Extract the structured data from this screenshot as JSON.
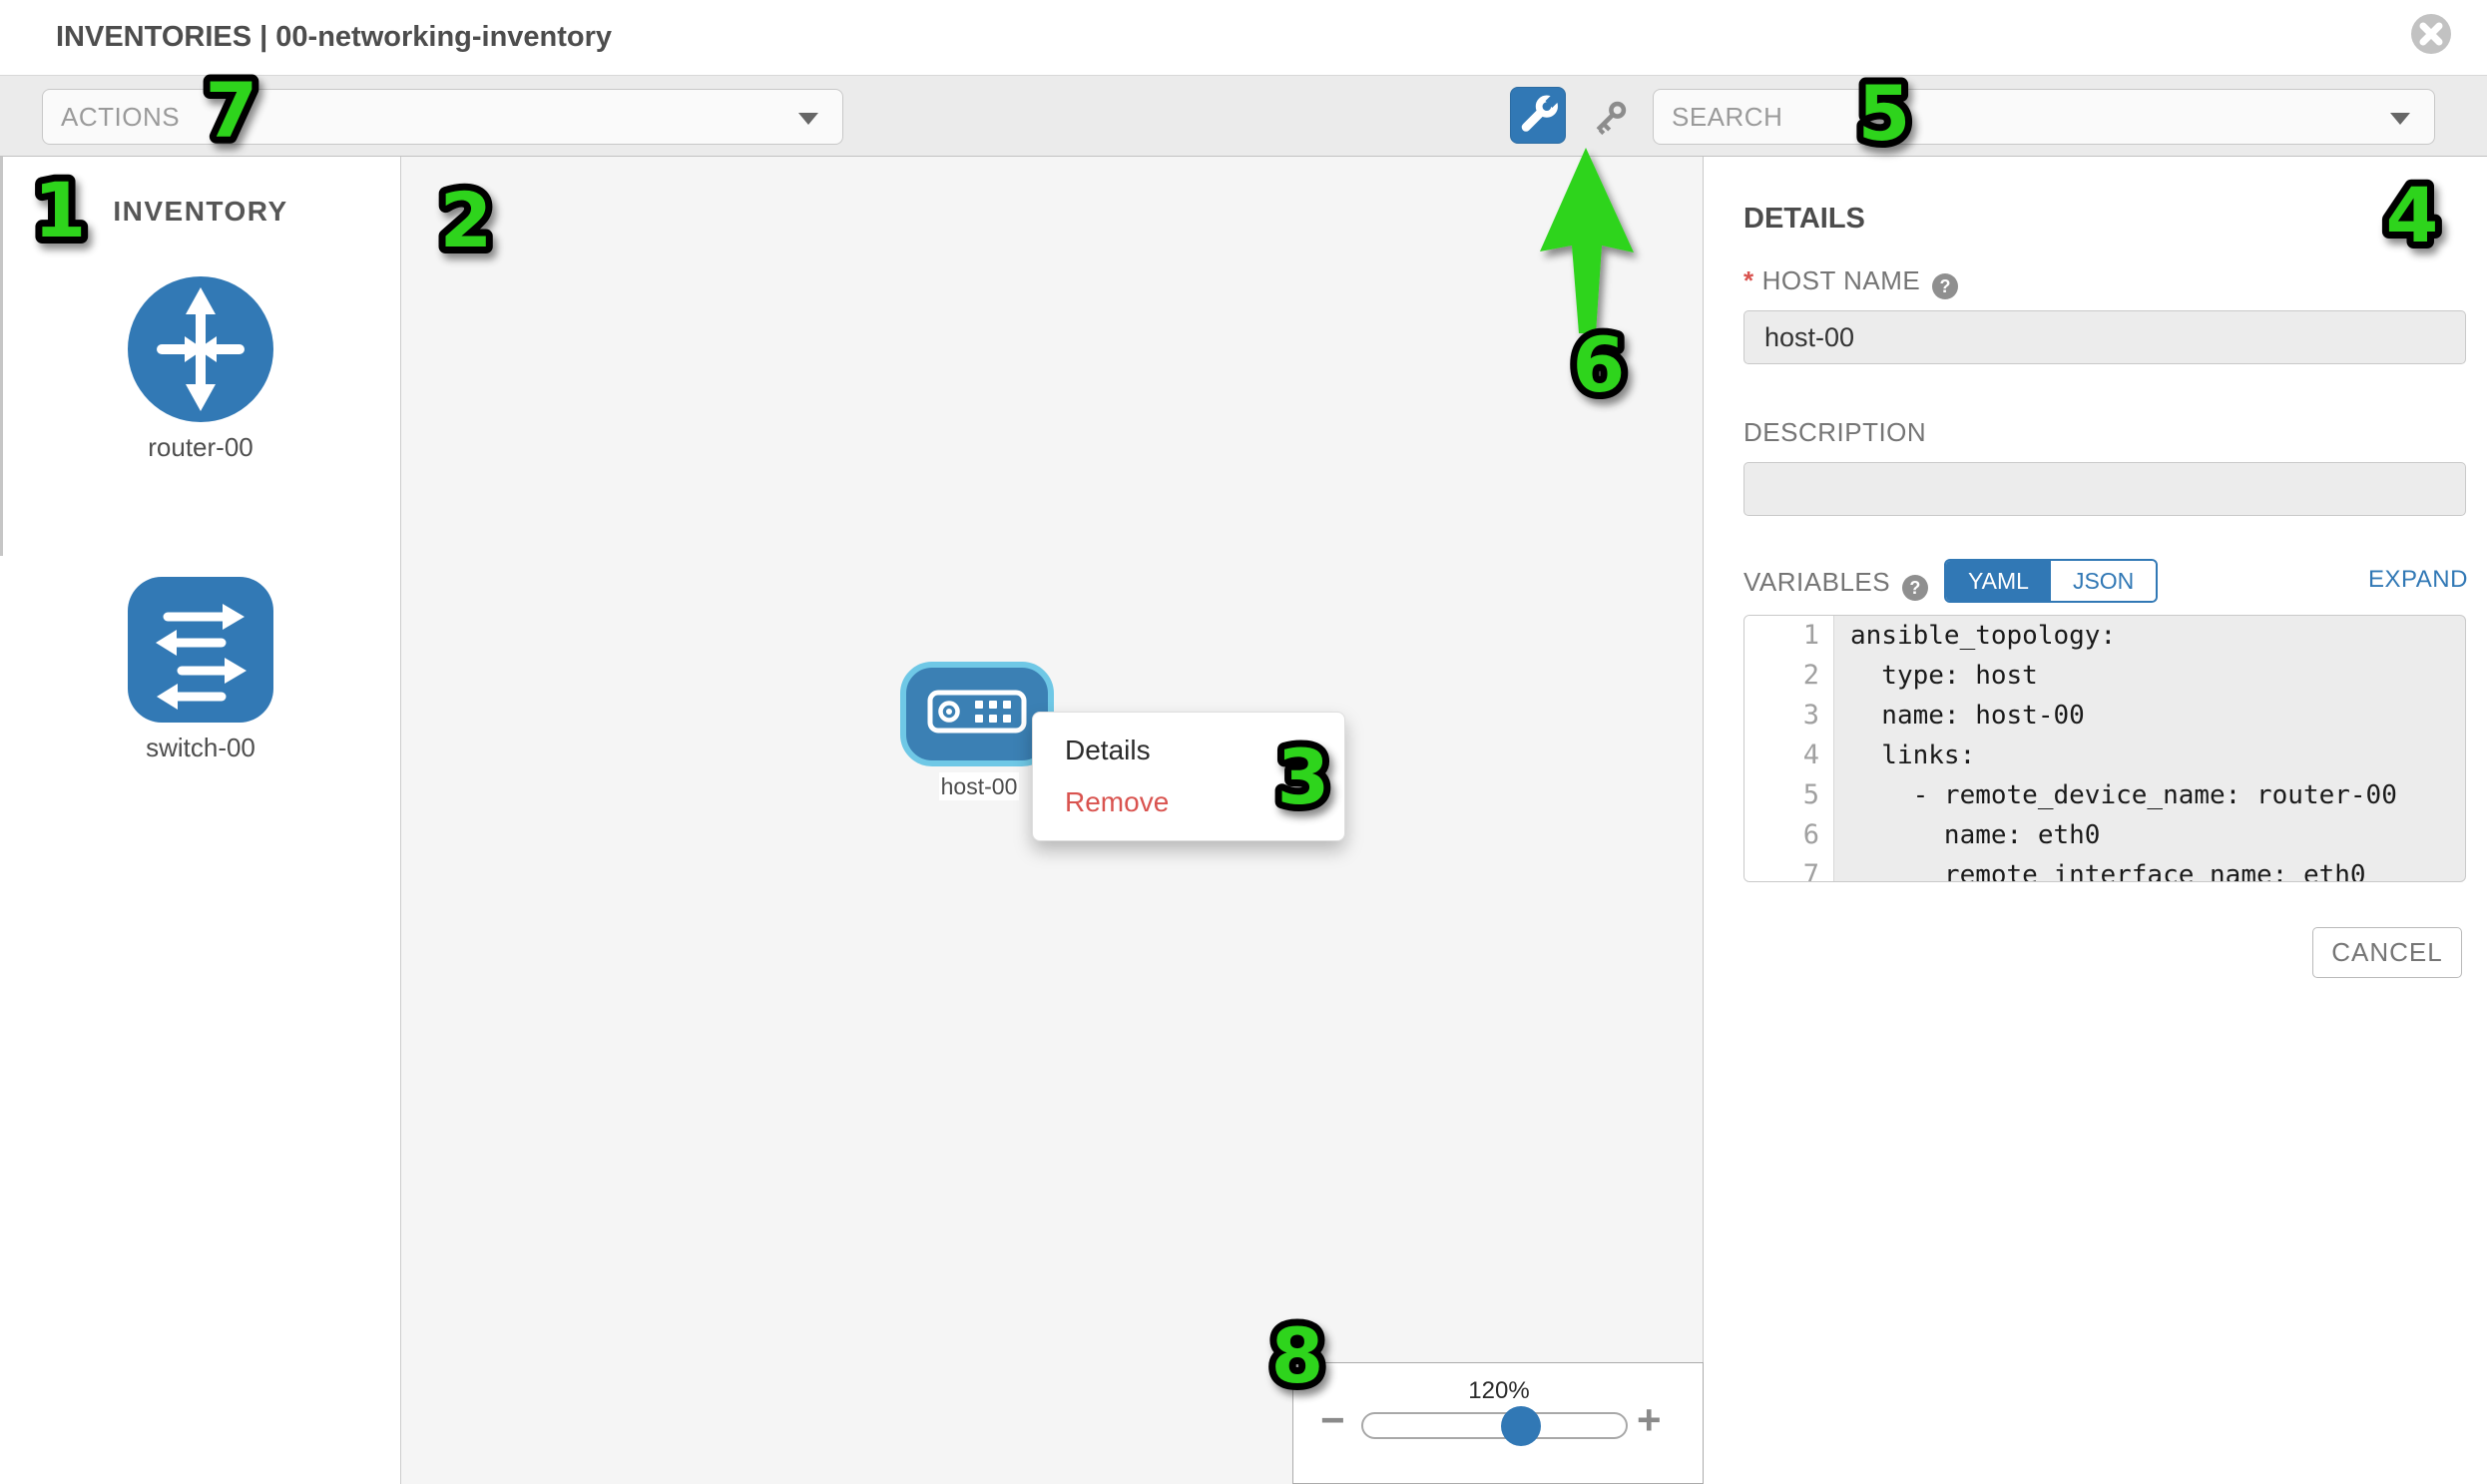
{
  "header": {
    "title": "INVENTORIES | 00-networking-inventory"
  },
  "toolbar": {
    "actions_label": "ACTIONS",
    "search_placeholder": "SEARCH"
  },
  "sidebar": {
    "heading": "INVENTORY",
    "items": [
      {
        "label": "router-00",
        "type": "router"
      },
      {
        "label": "switch-00",
        "type": "switch"
      }
    ]
  },
  "canvas": {
    "node_label": "host-00",
    "context_menu": {
      "details_label": "Details",
      "remove_label": "Remove"
    },
    "zoom_control": {
      "level": "120%",
      "minus": "−",
      "plus": "+"
    }
  },
  "details_panel": {
    "heading": "DETAILS",
    "host_name": {
      "required_mark": "*",
      "label": "HOST NAME",
      "help": "?",
      "value": "host-00"
    },
    "description": {
      "label": "DESCRIPTION",
      "value": ""
    },
    "variables": {
      "label": "VARIABLES",
      "help": "?",
      "yaml_label": "YAML",
      "json_label": "JSON",
      "active_tab": "YAML",
      "expand_label": "EXPAND",
      "code_lines": [
        {
          "num": "1",
          "text": "ansible_topology:"
        },
        {
          "num": "2",
          "text": "  type: host"
        },
        {
          "num": "3",
          "text": "  name: host-00"
        },
        {
          "num": "4",
          "text": "  links:"
        },
        {
          "num": "5",
          "text": "    - remote_device_name: router-00"
        },
        {
          "num": "6",
          "text": "      name: eth0"
        },
        {
          "num": "7",
          "text": "      remote_interface_name: eth0"
        }
      ]
    },
    "cancel_label": "CANCEL"
  },
  "annotations": {
    "n1": "1",
    "n2": "2",
    "n3": "3",
    "n4": "4",
    "n5": "5",
    "n6": "6",
    "n7": "7",
    "n8": "8"
  },
  "colors": {
    "primary_blue": "#3178b5",
    "node_fill": "#3b80b4",
    "node_selection": "#6fc8e6",
    "remove_red": "#d9534f",
    "annotation_green": "#2dd41c",
    "canvas_bg": "#f5f5f5",
    "toolbar_bg": "#ebebeb",
    "input_bg": "#ececec"
  }
}
